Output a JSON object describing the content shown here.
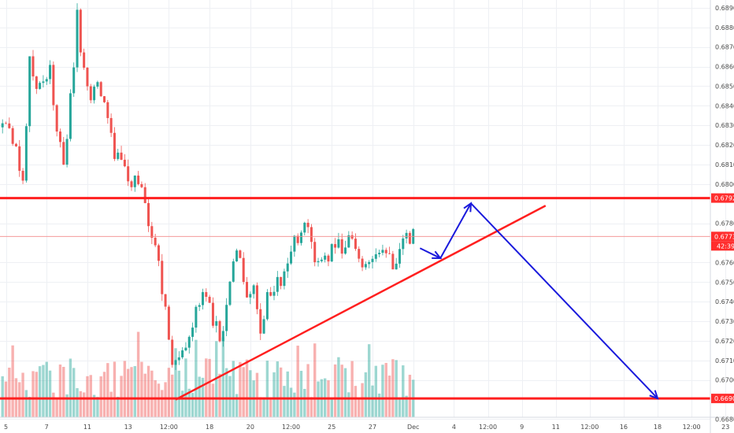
{
  "chart_data": {
    "type": "candlestick",
    "grid": true,
    "ylim": [
      0.6681,
      0.6894
    ],
    "y_ticks": [
      "0.68900",
      "0.68800",
      "0.68700",
      "0.68600",
      "0.68500",
      "0.68400",
      "0.68300",
      "0.68200",
      "0.68100",
      "0.68000",
      "0.67800",
      "0.67600",
      "0.67500",
      "0.67400",
      "0.67300",
      "0.67200",
      "0.67100",
      "0.67000",
      "0.66800"
    ],
    "x_ticks": [
      "5",
      "7",
      "11",
      "13",
      "12:00",
      "18",
      "20",
      "12:00",
      "25",
      "27",
      "Dec",
      "4",
      "12:00",
      "9",
      "11",
      "12:00",
      "16",
      "18",
      "12:00",
      "23"
    ],
    "x_tick_index": [
      1,
      13,
      25,
      37,
      49,
      61,
      73,
      85,
      97,
      109,
      121,
      133,
      143,
      153,
      163,
      173,
      183,
      193,
      203,
      213
    ],
    "current_price": {
      "value": 0.67733,
      "label": "0.67733",
      "countdown": "42:39"
    },
    "levels": [
      {
        "value": 0.67929,
        "label": "0.67929",
        "color": "#ff1f1f"
      },
      {
        "value": 0.66906,
        "label": "0.66906",
        "color": "#ff1f1f"
      }
    ],
    "trendline": {
      "points": [
        [
          51,
          0.669
        ],
        [
          160,
          0.6789
        ]
      ],
      "color": "#ff1f1f"
    },
    "projection": {
      "points": [
        [
          123,
          0.67673
        ],
        [
          129,
          0.67622
        ],
        [
          138,
          0.67902
        ],
        [
          193,
          0.66906
        ]
      ],
      "color": "#1a1adc"
    },
    "colors": {
      "up": "#26a69a",
      "down": "#ef5350",
      "axis_text": "#4a4a4a",
      "tag_bg": "#ff2e2e",
      "grid": "#eef0f4"
    },
    "close_path": [
      [
        0,
        0.6829
      ],
      [
        4,
        0.6823
      ],
      [
        6,
        0.6798
      ],
      [
        8,
        0.6861
      ],
      [
        10,
        0.6851
      ],
      [
        12,
        0.6852
      ],
      [
        14,
        0.6858
      ],
      [
        16,
        0.6823
      ],
      [
        18,
        0.6812
      ],
      [
        20,
        0.6842
      ],
      [
        22,
        0.6886
      ],
      [
        24,
        0.6857
      ],
      [
        26,
        0.6846
      ],
      [
        28,
        0.6851
      ],
      [
        30,
        0.684
      ],
      [
        32,
        0.6822
      ],
      [
        34,
        0.6812
      ],
      [
        36,
        0.6807
      ],
      [
        38,
        0.6802
      ],
      [
        40,
        0.68
      ],
      [
        42,
        0.679
      ],
      [
        44,
        0.6775
      ],
      [
        46,
        0.6757
      ],
      [
        48,
        0.6735
      ],
      [
        50,
        0.6712
      ],
      [
        52,
        0.6708
      ],
      [
        54,
        0.672
      ],
      [
        56,
        0.673
      ],
      [
        58,
        0.6742
      ],
      [
        60,
        0.6745
      ],
      [
        62,
        0.673
      ],
      [
        64,
        0.6723
      ],
      [
        66,
        0.6736
      ],
      [
        68,
        0.6765
      ],
      [
        70,
        0.676
      ],
      [
        72,
        0.6743
      ],
      [
        74,
        0.6752
      ],
      [
        76,
        0.6723
      ],
      [
        78,
        0.6742
      ],
      [
        80,
        0.6748
      ],
      [
        82,
        0.675
      ],
      [
        84,
        0.6758
      ],
      [
        86,
        0.677
      ],
      [
        88,
        0.6775
      ],
      [
        90,
        0.6777
      ],
      [
        92,
        0.6756
      ],
      [
        94,
        0.6757
      ],
      [
        96,
        0.6762
      ],
      [
        98,
        0.6772
      ],
      [
        100,
        0.6766
      ],
      [
        102,
        0.6774
      ],
      [
        104,
        0.6765
      ],
      [
        106,
        0.676
      ],
      [
        108,
        0.6758
      ],
      [
        110,
        0.6762
      ],
      [
        112,
        0.6768
      ],
      [
        114,
        0.6762
      ],
      [
        116,
        0.6757
      ],
      [
        118,
        0.6774
      ],
      [
        120,
        0.6772
      ],
      [
        121,
        0.6774
      ]
    ],
    "volume_ylim": [
      0,
      110
    ]
  }
}
